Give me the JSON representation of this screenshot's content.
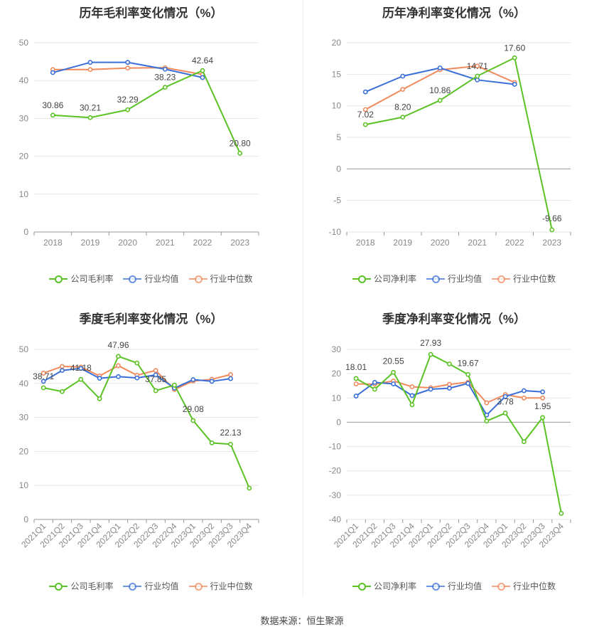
{
  "colors": {
    "company": "#5bc225",
    "industry_avg": "#3a6fd8",
    "industry_median": "#f08a5d",
    "grid": "#e6e6e6",
    "axis": "#999999",
    "label": "#444444"
  },
  "source": {
    "label": "数据来源：",
    "value": "恒生聚源"
  },
  "chart_data": [
    {
      "type": "line",
      "title": "历年毛利率变化情况（%）",
      "categories": [
        "2018",
        "2019",
        "2020",
        "2021",
        "2022",
        "2023"
      ],
      "ylim": [
        0,
        50
      ],
      "yticks": [
        0,
        10,
        20,
        30,
        40,
        50
      ],
      "grid": true,
      "legend": "bottom",
      "series": [
        {
          "name": "公司毛利率",
          "key": "company",
          "values": [
            30.86,
            30.21,
            32.29,
            38.23,
            42.64,
            20.8
          ]
        },
        {
          "name": "行业均值",
          "key": "industry_avg",
          "values": [
            42.1,
            44.8,
            44.8,
            43.0,
            40.8,
            null
          ]
        },
        {
          "name": "行业中位数",
          "key": "industry_median",
          "values": [
            42.9,
            42.9,
            43.3,
            43.4,
            41.6,
            null
          ]
        }
      ],
      "data_labels": [
        {
          "series": 0,
          "index": 0,
          "text": "30.86"
        },
        {
          "series": 0,
          "index": 1,
          "text": "30.21"
        },
        {
          "series": 0,
          "index": 2,
          "text": "32.29"
        },
        {
          "series": 0,
          "index": 3,
          "text": "38.23"
        },
        {
          "series": 0,
          "index": 4,
          "text": "42.64"
        },
        {
          "series": 0,
          "index": 5,
          "text": "20.80"
        }
      ]
    },
    {
      "type": "line",
      "title": "历年净利率变化情况（%）",
      "categories": [
        "2018",
        "2019",
        "2020",
        "2021",
        "2022",
        "2023"
      ],
      "ylim": [
        -10,
        20
      ],
      "yticks": [
        -10,
        -5,
        0,
        5,
        10,
        15,
        20
      ],
      "grid": true,
      "legend": "bottom",
      "series": [
        {
          "name": "公司净利率",
          "key": "company",
          "values": [
            7.02,
            8.2,
            10.86,
            14.71,
            17.6,
            -9.66
          ]
        },
        {
          "name": "行业均值",
          "key": "industry_avg",
          "values": [
            12.2,
            14.7,
            16.0,
            14.1,
            13.4,
            null
          ]
        },
        {
          "name": "行业中位数",
          "key": "industry_median",
          "values": [
            9.4,
            12.6,
            15.7,
            16.3,
            13.7,
            null
          ]
        }
      ],
      "data_labels": [
        {
          "series": 0,
          "index": 0,
          "text": "7.02"
        },
        {
          "series": 0,
          "index": 1,
          "text": "8.20"
        },
        {
          "series": 0,
          "index": 2,
          "text": "10.86"
        },
        {
          "series": 0,
          "index": 3,
          "text": "14.71"
        },
        {
          "series": 0,
          "index": 4,
          "text": "17.60"
        },
        {
          "series": 0,
          "index": 5,
          "text": "-9.66"
        }
      ]
    },
    {
      "type": "line",
      "title": "季度毛利率变化情况（%）",
      "categories": [
        "2021Q1",
        "2021Q2",
        "2021Q3",
        "2021Q4",
        "2022Q1",
        "2022Q2",
        "2022Q3",
        "2022Q4",
        "2023Q1",
        "2023Q2",
        "2023Q3",
        "2023Q4"
      ],
      "ylim": [
        0,
        50
      ],
      "yticks": [
        0,
        10,
        20,
        30,
        40,
        50
      ],
      "grid": true,
      "legend": "bottom",
      "series": [
        {
          "name": "公司毛利率",
          "key": "company",
          "values": [
            38.71,
            37.6,
            41.18,
            35.5,
            47.96,
            46.0,
            37.85,
            39.5,
            29.08,
            22.5,
            22.13,
            9.2
          ]
        },
        {
          "name": "行业均值",
          "key": "industry_avg",
          "values": [
            40.6,
            43.8,
            44.4,
            41.5,
            42.0,
            41.6,
            42.5,
            38.6,
            41.1,
            40.6,
            41.4,
            null
          ]
        },
        {
          "name": "行业中位数",
          "key": "industry_median",
          "values": [
            43.0,
            45.0,
            44.8,
            42.2,
            45.2,
            42.4,
            43.8,
            38.2,
            40.7,
            41.2,
            42.6,
            null
          ]
        }
      ],
      "data_labels": [
        {
          "series": 0,
          "index": 0,
          "text": "38.71"
        },
        {
          "series": 0,
          "index": 2,
          "text": "41.18"
        },
        {
          "series": 0,
          "index": 4,
          "text": "47.96"
        },
        {
          "series": 0,
          "index": 6,
          "text": "37.85"
        },
        {
          "series": 0,
          "index": 8,
          "text": "29.08"
        },
        {
          "series": 0,
          "index": 10,
          "text": "22.13"
        }
      ]
    },
    {
      "type": "line",
      "title": "季度净利率变化情况（%）",
      "categories": [
        "2021Q1",
        "2021Q2",
        "2021Q3",
        "2021Q4",
        "2022Q1",
        "2022Q2",
        "2022Q3",
        "2022Q4",
        "2023Q1",
        "2023Q2",
        "2023Q3",
        "2023Q4"
      ],
      "ylim": [
        -40,
        30
      ],
      "yticks": [
        -40,
        -30,
        -20,
        -10,
        0,
        10,
        20,
        30
      ],
      "grid": true,
      "legend": "bottom",
      "series": [
        {
          "name": "公司净利率",
          "key": "company",
          "values": [
            18.01,
            13.6,
            20.55,
            7.2,
            27.93,
            24.0,
            19.67,
            0.5,
            3.78,
            -8.0,
            1.95,
            -37.5
          ]
        },
        {
          "name": "行业均值",
          "key": "industry_avg",
          "values": [
            10.8,
            16.4,
            15.8,
            11.0,
            13.6,
            14.0,
            16.0,
            3.0,
            10.6,
            13.0,
            12.5,
            null
          ]
        },
        {
          "name": "行业中位数",
          "key": "industry_median",
          "values": [
            15.8,
            15.7,
            17.0,
            14.6,
            14.2,
            15.6,
            16.5,
            8.0,
            11.4,
            10.0,
            10.0,
            null
          ]
        }
      ],
      "data_labels": [
        {
          "series": 0,
          "index": 0,
          "text": "18.01"
        },
        {
          "series": 0,
          "index": 2,
          "text": "20.55"
        },
        {
          "series": 0,
          "index": 4,
          "text": "27.93"
        },
        {
          "series": 0,
          "index": 6,
          "text": "19.67"
        },
        {
          "series": 0,
          "index": 8,
          "text": "3.78"
        },
        {
          "series": 0,
          "index": 10,
          "text": "1.95"
        }
      ]
    }
  ]
}
